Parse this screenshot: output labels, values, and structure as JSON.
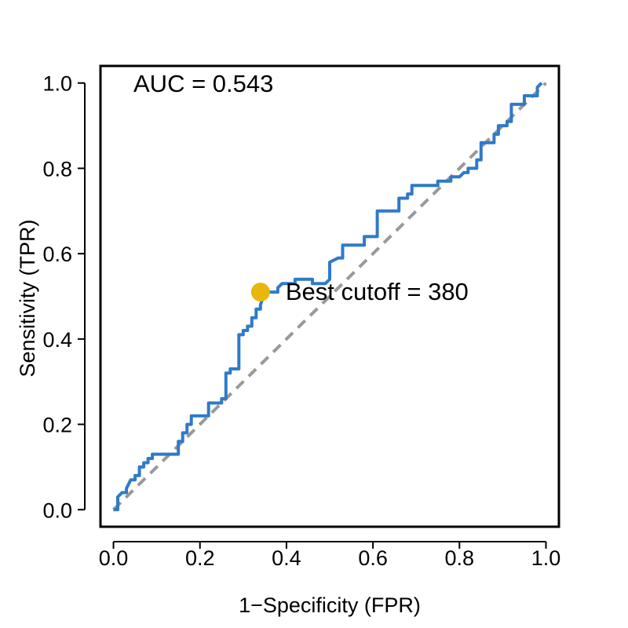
{
  "chart_data": {
    "type": "line",
    "title": "",
    "xlabel": "1−Specificity (FPR)",
    "ylabel": "Sensitivity (TPR)",
    "xlim": [
      -0.03,
      1.03
    ],
    "ylim": [
      -0.04,
      1.04
    ],
    "xticks": [
      0.0,
      0.2,
      0.4,
      0.6,
      0.8,
      1.0
    ],
    "xtick_labels": [
      "0.0",
      "0.2",
      "0.4",
      "0.6",
      "0.8",
      "1.0"
    ],
    "yticks": [
      0.0,
      0.2,
      0.4,
      0.6,
      0.8,
      1.0
    ],
    "ytick_labels": [
      "0.0",
      "0.2",
      "0.4",
      "0.6",
      "0.8",
      "1.0"
    ],
    "grid": false,
    "colors": {
      "roc": "#2f7ac8",
      "reference": "#999999",
      "cutoff": "#e8b70a"
    },
    "series": [
      {
        "style": "solid",
        "x": [
          0.0,
          0.01,
          0.01,
          0.01,
          0.02,
          0.03,
          0.03,
          0.03,
          0.04,
          0.05,
          0.05,
          0.06,
          0.06,
          0.07,
          0.07,
          0.08,
          0.08,
          0.09,
          0.09,
          0.15,
          0.15,
          0.16,
          0.16,
          0.17,
          0.17,
          0.18,
          0.18,
          0.22,
          0.22,
          0.25,
          0.25,
          0.26,
          0.26,
          0.27,
          0.27,
          0.29,
          0.29,
          0.3,
          0.3,
          0.31,
          0.31,
          0.32,
          0.32,
          0.33,
          0.33,
          0.34,
          0.34,
          0.35,
          0.38,
          0.38,
          0.39,
          0.42,
          0.42,
          0.46,
          0.46,
          0.49,
          0.5,
          0.5,
          0.52,
          0.53,
          0.53,
          0.58,
          0.58,
          0.61,
          0.61,
          0.66,
          0.66,
          0.68,
          0.68,
          0.69,
          0.69,
          0.75,
          0.75,
          0.78,
          0.78,
          0.8,
          0.81,
          0.82,
          0.82,
          0.84,
          0.84,
          0.85,
          0.85,
          0.88,
          0.88,
          0.89,
          0.89,
          0.91,
          0.91,
          0.92,
          0.92,
          0.95,
          0.95,
          0.98,
          0.98,
          0.99
        ],
        "y": [
          0.0,
          0.0,
          0.03,
          0.03,
          0.04,
          0.04,
          0.05,
          0.05,
          0.07,
          0.07,
          0.08,
          0.08,
          0.1,
          0.1,
          0.11,
          0.11,
          0.12,
          0.12,
          0.13,
          0.13,
          0.16,
          0.16,
          0.18,
          0.18,
          0.2,
          0.2,
          0.22,
          0.22,
          0.25,
          0.25,
          0.26,
          0.26,
          0.32,
          0.32,
          0.33,
          0.33,
          0.41,
          0.41,
          0.42,
          0.42,
          0.43,
          0.43,
          0.45,
          0.45,
          0.47,
          0.47,
          0.48,
          0.51,
          0.51,
          0.52,
          0.53,
          0.53,
          0.54,
          0.54,
          0.53,
          0.53,
          0.54,
          0.58,
          0.59,
          0.59,
          0.62,
          0.62,
          0.64,
          0.64,
          0.7,
          0.7,
          0.73,
          0.73,
          0.74,
          0.74,
          0.76,
          0.76,
          0.77,
          0.77,
          0.78,
          0.78,
          0.79,
          0.79,
          0.8,
          0.8,
          0.82,
          0.82,
          0.86,
          0.86,
          0.88,
          0.88,
          0.9,
          0.9,
          0.91,
          0.91,
          0.95,
          0.95,
          0.97,
          0.97,
          0.99,
          1.0
        ]
      },
      {
        "style": "dashed",
        "x": [
          0,
          1
        ],
        "y": [
          0,
          1
        ]
      }
    ],
    "annotations": {
      "auc_text": "AUC = 0.543",
      "cutoff_text": "Best cutoff = 380",
      "cutoff_point": {
        "x": 0.34,
        "y": 0.51
      }
    }
  }
}
